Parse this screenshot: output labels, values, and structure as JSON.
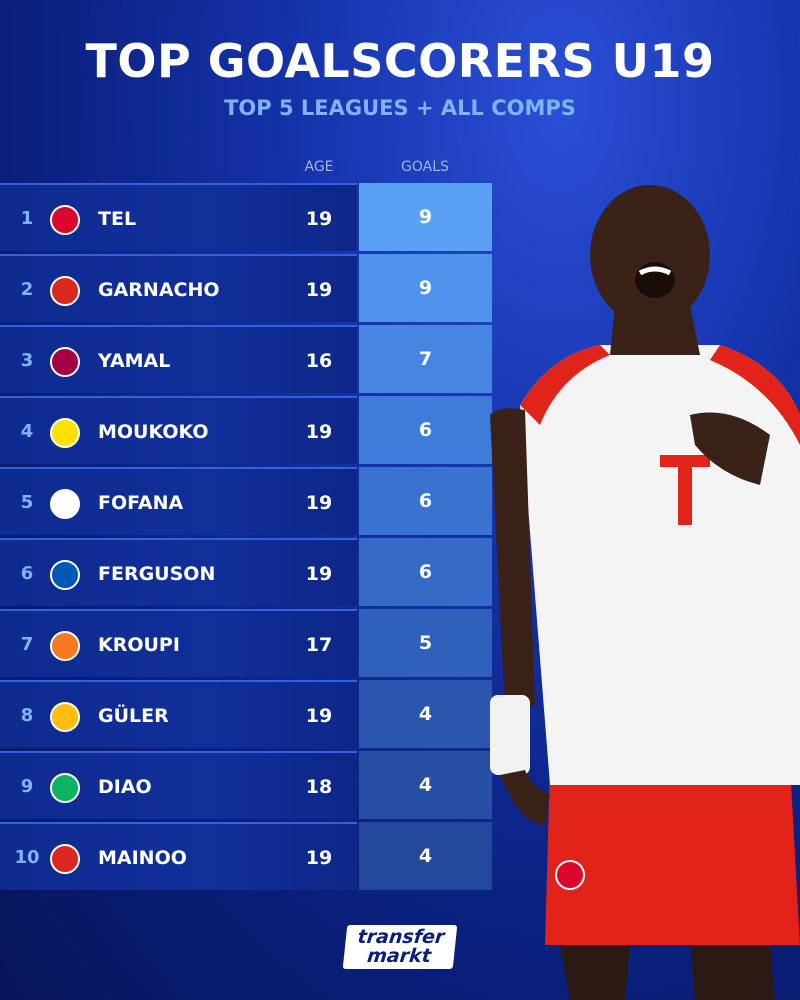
{
  "header": {
    "title": "TOP GOALSCORERS U19",
    "subtitle": "TOP 5 LEAGUES + ALL COMPS"
  },
  "columns": {
    "age": "AGE",
    "goals": "GOALS"
  },
  "rows": [
    {
      "rank": "1",
      "name": "TEL",
      "age": "19",
      "goals": "9",
      "club_icon": "bayern-crest-icon",
      "crest_color": "#dc052d"
    },
    {
      "rank": "2",
      "name": "GARNACHO",
      "age": "19",
      "goals": "9",
      "club_icon": "man-utd-crest-icon",
      "crest_color": "#da291c"
    },
    {
      "rank": "3",
      "name": "YAMAL",
      "age": "16",
      "goals": "7",
      "club_icon": "barcelona-crest-icon",
      "crest_color": "#a50044"
    },
    {
      "rank": "4",
      "name": "MOUKOKO",
      "age": "19",
      "goals": "6",
      "club_icon": "dortmund-crest-icon",
      "crest_color": "#fde100"
    },
    {
      "rank": "5",
      "name": "FOFANA",
      "age": "19",
      "goals": "6",
      "club_icon": "lyon-crest-icon",
      "crest_color": "#ffffff"
    },
    {
      "rank": "6",
      "name": "FERGUSON",
      "age": "19",
      "goals": "6",
      "club_icon": "brighton-crest-icon",
      "crest_color": "#0057b8"
    },
    {
      "rank": "7",
      "name": "KROUPI",
      "age": "17",
      "goals": "5",
      "club_icon": "lorient-crest-icon",
      "crest_color": "#f47920"
    },
    {
      "rank": "8",
      "name": "GÜLER",
      "age": "19",
      "goals": "4",
      "club_icon": "real-madrid-crest-icon",
      "crest_color": "#febe10"
    },
    {
      "rank": "9",
      "name": "DIAO",
      "age": "18",
      "goals": "4",
      "club_icon": "betis-crest-icon",
      "crest_color": "#0bb363"
    },
    {
      "rank": "10",
      "name": "MAINOO",
      "age": "19",
      "goals": "4",
      "club_icon": "man-utd-crest-icon",
      "crest_color": "#da291c"
    }
  ],
  "goal_colors": [
    "#5aa0f5",
    "#4f93ec",
    "#4686e2",
    "#3f7bd8",
    "#3a72cf",
    "#356ac6",
    "#2f60bb",
    "#2a56ae",
    "#274fa4",
    "#23479a"
  ],
  "brand": {
    "logo_line1": "transfer",
    "logo_line2": "markt"
  }
}
